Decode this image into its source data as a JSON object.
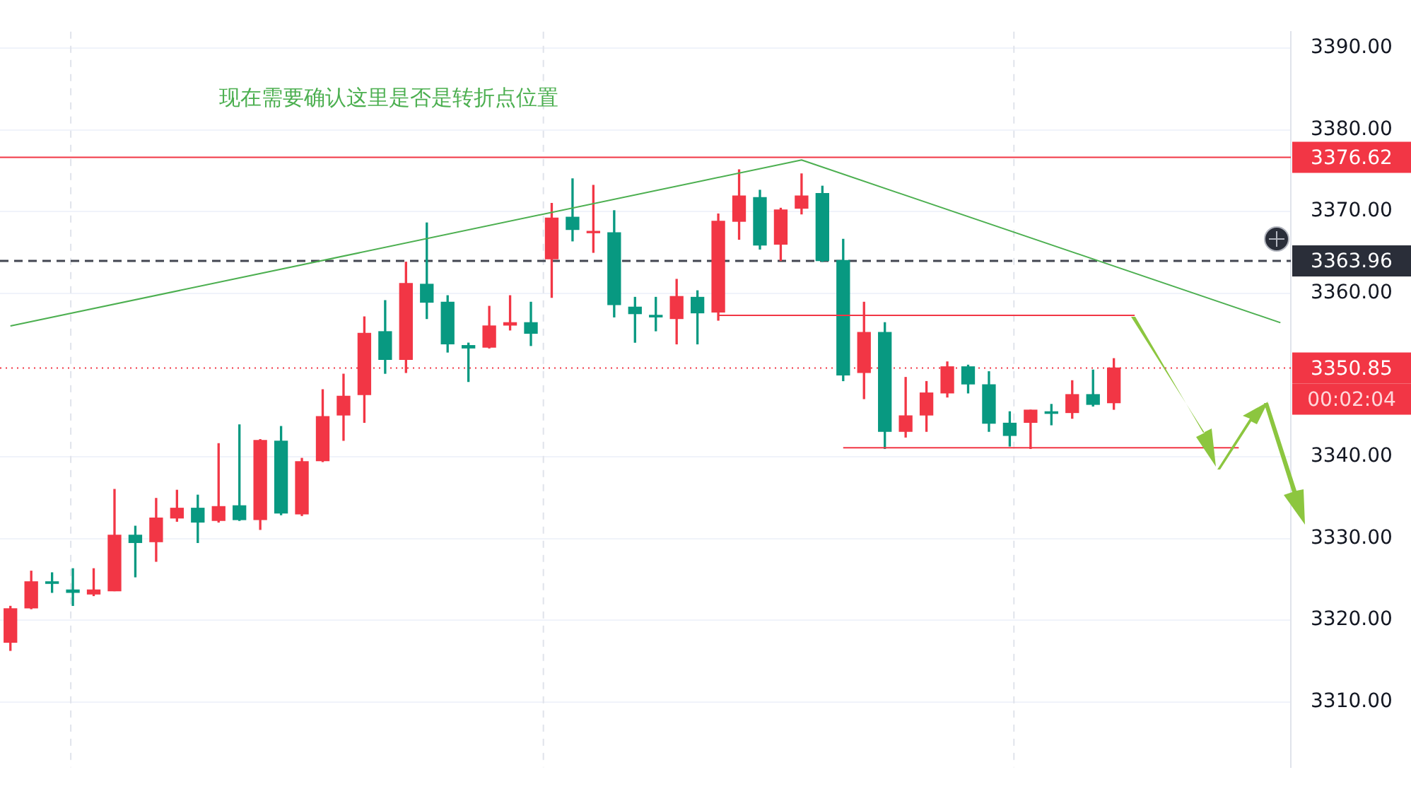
{
  "chart_data": {
    "type": "candlestick",
    "categories": [
      null,
      null,
      null,
      null,
      null,
      null,
      null,
      null,
      null,
      null,
      null,
      null,
      null,
      null,
      null,
      null,
      null,
      null,
      null,
      null,
      null,
      null,
      null,
      null,
      null,
      null,
      null,
      null,
      null,
      null,
      null,
      null,
      null,
      null,
      null,
      null,
      null,
      null,
      null,
      null,
      null,
      null,
      null,
      null,
      null,
      null,
      null,
      null,
      null,
      null,
      null,
      null,
      null,
      null,
      null,
      null,
      null,
      null,
      null,
      null,
      null,
      null
    ],
    "ohlc": [
      [
        3317.3,
        3321.7,
        3316.3,
        3321.4
      ],
      [
        3321.5,
        3326.0,
        3321.4,
        3324.7
      ],
      [
        3324.7,
        3325.8,
        3323.4,
        3324.5
      ],
      [
        3323.7,
        3326.3,
        3321.8,
        3323.4
      ],
      [
        3323.2,
        3326.3,
        3323.0,
        3323.7
      ],
      [
        3323.6,
        3336.0,
        3323.6,
        3330.4
      ],
      [
        3330.4,
        3331.5,
        3325.3,
        3329.5
      ],
      [
        3329.6,
        3334.9,
        3327.2,
        3332.5
      ],
      [
        3332.5,
        3335.9,
        3332.1,
        3333.7
      ],
      [
        3333.7,
        3335.3,
        3329.5,
        3332.0
      ],
      [
        3332.2,
        3341.6,
        3332.0,
        3333.9
      ],
      [
        3334.0,
        3343.9,
        3332.2,
        3332.3
      ],
      [
        3332.3,
        3342.1,
        3331.1,
        3342.0
      ],
      [
        3341.9,
        3343.7,
        3332.9,
        3333.1
      ],
      [
        3333.0,
        3339.8,
        3332.8,
        3339.4
      ],
      [
        3339.5,
        3348.2,
        3339.4,
        3344.9
      ],
      [
        3345.1,
        3350.1,
        3342.0,
        3347.4
      ],
      [
        3347.6,
        3357.1,
        3344.2,
        3355.1
      ],
      [
        3355.3,
        3359.1,
        3350.2,
        3351.9
      ],
      [
        3351.9,
        3363.8,
        3350.3,
        3361.2
      ],
      [
        3361.1,
        3368.6,
        3356.9,
        3358.9
      ],
      [
        3358.9,
        3359.7,
        3352.8,
        3353.8
      ],
      [
        3353.6,
        3353.9,
        3349.2,
        3353.3
      ],
      [
        3353.4,
        3358.4,
        3353.3,
        3356.0
      ],
      [
        3356.1,
        3359.7,
        3355.5,
        3356.4
      ],
      [
        3356.4,
        3358.9,
        3353.6,
        3355.1
      ],
      [
        3364.2,
        3371.0,
        3359.5,
        3369.2
      ],
      [
        3369.3,
        3374.0,
        3366.4,
        3367.8
      ],
      [
        3367.4,
        3373.2,
        3365.0,
        3367.5
      ],
      [
        3367.4,
        3370.1,
        3357.1,
        3358.6
      ],
      [
        3358.3,
        3359.5,
        3354.0,
        3357.5
      ],
      [
        3357.3,
        3359.5,
        3355.4,
        3357.1
      ],
      [
        3356.9,
        3361.7,
        3353.8,
        3359.6
      ],
      [
        3359.5,
        3360.3,
        3353.8,
        3357.6
      ],
      [
        3357.7,
        3369.7,
        3356.7,
        3368.8
      ],
      [
        3368.8,
        3375.1,
        3366.6,
        3371.9
      ],
      [
        3371.7,
        3372.6,
        3365.4,
        3365.9
      ],
      [
        3366.0,
        3370.4,
        3364.0,
        3370.2
      ],
      [
        3370.4,
        3374.6,
        3369.7,
        3371.9
      ],
      [
        3372.2,
        3373.1,
        3363.9,
        3364.0
      ],
      [
        3364.0,
        3366.6,
        3349.3,
        3350.0
      ],
      [
        3350.3,
        3358.9,
        3347.1,
        3355.2
      ],
      [
        3355.2,
        3356.4,
        3341.0,
        3343.1
      ],
      [
        3343.1,
        3349.7,
        3342.4,
        3345.0
      ],
      [
        3345.1,
        3349.2,
        3343.1,
        3347.8
      ],
      [
        3347.8,
        3351.6,
        3347.3,
        3351.0
      ],
      [
        3351.0,
        3351.2,
        3347.8,
        3348.9
      ],
      [
        3348.8,
        3350.4,
        3343.1,
        3344.1
      ],
      [
        3344.1,
        3345.5,
        3341.3,
        3342.6
      ],
      [
        3344.2,
        3345.7,
        3341.0,
        3345.7
      ],
      [
        3345.5,
        3346.4,
        3343.9,
        3345.3
      ],
      [
        3345.4,
        3349.3,
        3344.7,
        3347.6
      ],
      [
        3347.6,
        3350.6,
        3346.2,
        3346.4
      ],
      [
        3346.6,
        3352.0,
        3345.8,
        3350.85
      ],
      null,
      null,
      null,
      null,
      null,
      null,
      null,
      null
    ],
    "colors": [
      "#f23645",
      "#f23645",
      "#089981",
      "#089981",
      "#f23645",
      "#f23645",
      "#089981",
      "#f23645",
      "#f23645",
      "#089981",
      "#f23645",
      "#089981",
      "#f23645",
      "#089981",
      "#f23645",
      "#f23645",
      "#f23645",
      "#f23645",
      "#089981",
      "#f23645",
      "#089981",
      "#089981",
      "#089981",
      "#f23645",
      "#f23645",
      "#089981",
      "#f23645",
      "#089981",
      "#f23645",
      "#089981",
      "#089981",
      "#089981",
      "#f23645",
      "#089981",
      "#f23645",
      "#f23645",
      "#089981",
      "#f23645",
      "#f23645",
      "#089981",
      "#089981",
      "#f23645",
      "#089981",
      "#f23645",
      "#f23645",
      "#f23645",
      "#089981",
      "#089981",
      "#089981",
      "#f23645",
      "#089981",
      "#f23645",
      "#089981",
      "#f23645",
      null,
      null,
      null,
      null,
      null,
      null,
      null,
      null
    ],
    "series": [
      {
        "type": "line",
        "color": "#4caf50",
        "values": [
          3356.0,
          null,
          null,
          null,
          null,
          null,
          null,
          null,
          null,
          null,
          null,
          null,
          null,
          null,
          null,
          null,
          null,
          null,
          null,
          null,
          null,
          null,
          null,
          null,
          null,
          null,
          null,
          null,
          null,
          null,
          null,
          null,
          null,
          null,
          null,
          null,
          null,
          null,
          3376.3,
          null,
          null,
          null,
          null,
          null,
          null,
          null,
          null,
          null,
          null,
          null,
          null,
          null,
          null,
          null,
          null,
          null,
          null,
          null,
          null,
          null,
          null,
          3356.4
        ]
      },
      {
        "type": "line",
        "color": "#f23645",
        "values": [
          null,
          null,
          null,
          null,
          null,
          null,
          null,
          null,
          null,
          null,
          null,
          null,
          null,
          null,
          null,
          null,
          null,
          null,
          null,
          null,
          null,
          null,
          null,
          null,
          null,
          null,
          null,
          null,
          null,
          null,
          null,
          null,
          null,
          null,
          3357.3,
          3357.3,
          3357.3,
          3357.3,
          3357.3,
          3357.3,
          3357.3,
          3357.3,
          3357.3,
          3357.3,
          3357.3,
          3357.3,
          3357.3,
          3357.3,
          3357.3,
          3357.3,
          3357.3,
          3357.3,
          3357.3,
          3357.3,
          3357.3,
          null,
          null,
          null,
          null,
          null,
          null,
          null
        ]
      },
      {
        "type": "line",
        "color": "#f23645",
        "values": [
          null,
          null,
          null,
          null,
          null,
          null,
          null,
          null,
          null,
          null,
          null,
          null,
          null,
          null,
          null,
          null,
          null,
          null,
          null,
          null,
          null,
          null,
          null,
          null,
          null,
          null,
          null,
          null,
          null,
          null,
          null,
          null,
          null,
          null,
          null,
          null,
          null,
          null,
          null,
          null,
          3341.1,
          3341.1,
          3341.1,
          3341.1,
          3341.1,
          3341.1,
          3341.1,
          3341.1,
          3341.1,
          3341.1,
          3341.1,
          3341.1,
          3341.1,
          3341.1,
          3341.1,
          3341.1,
          3341.1,
          3341.1,
          3341.1,
          3341.1,
          null,
          null
        ]
      }
    ],
    "ylim": [
      3302,
      3392
    ],
    "yticks": [
      {
        "value": 3310,
        "label": "3310.00"
      },
      {
        "value": 3320,
        "label": "3320.00"
      },
      {
        "value": 3330,
        "label": "3330.00"
      },
      {
        "value": 3340,
        "label": "3340.00"
      },
      {
        "value": 3360,
        "label": "3360.00"
      },
      {
        "value": 3370,
        "label": "3370.00"
      },
      {
        "value": 3380,
        "label": "3380.00"
      },
      {
        "value": 3390,
        "label": "3390.00"
      }
    ],
    "ref_lines": [
      {
        "axis": "y",
        "value": 3376.62,
        "label": "3376.62",
        "color": "#f23645",
        "line_style": "solid"
      },
      {
        "axis": "y",
        "value": 3363.96,
        "label": "3363.96",
        "color": "#434651",
        "line_style": "dashed"
      },
      {
        "axis": "y",
        "value": 3350.85,
        "label": "3350.85",
        "color": "#f23645",
        "line_style": "dotted"
      }
    ],
    "annotations": [
      "现在需要确认这里是否是转折点位置",
      "00:02:04"
    ],
    "grid": "y",
    "tick_labels": "y"
  }
}
